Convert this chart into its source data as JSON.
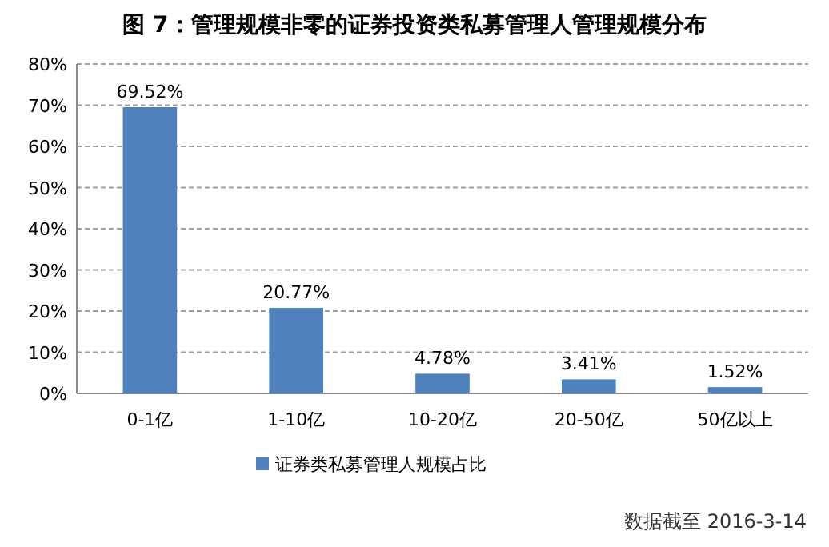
{
  "chart_data": {
    "type": "bar",
    "title": "图 7：管理规模非零的证券投资类私募管理人管理规模分布",
    "categories": [
      "0-1亿",
      "1-10亿",
      "10-20亿",
      "20-50亿",
      "50亿以上"
    ],
    "series": [
      {
        "name": "证券类私募管理人规模占比",
        "color": "#4f81bd",
        "values": [
          69.52,
          20.77,
          4.78,
          3.41,
          1.52
        ]
      }
    ],
    "value_labels": [
      "69.52%",
      "20.77%",
      "4.78%",
      "3.41%",
      "1.52%"
    ],
    "ylim": [
      0,
      80
    ],
    "yticks": [
      {
        "value": 0,
        "label": "0%"
      },
      {
        "value": 10,
        "label": "10%"
      },
      {
        "value": 20,
        "label": "20%"
      },
      {
        "value": 30,
        "label": "30%"
      },
      {
        "value": 40,
        "label": "40%"
      },
      {
        "value": 50,
        "label": "50%"
      },
      {
        "value": 60,
        "label": "60%"
      },
      {
        "value": 70,
        "label": "70%"
      },
      {
        "value": 80,
        "label": "80%"
      }
    ],
    "grid": "y",
    "legend": "bottom",
    "annotations": [
      "数据截至 2016-3-14"
    ]
  }
}
